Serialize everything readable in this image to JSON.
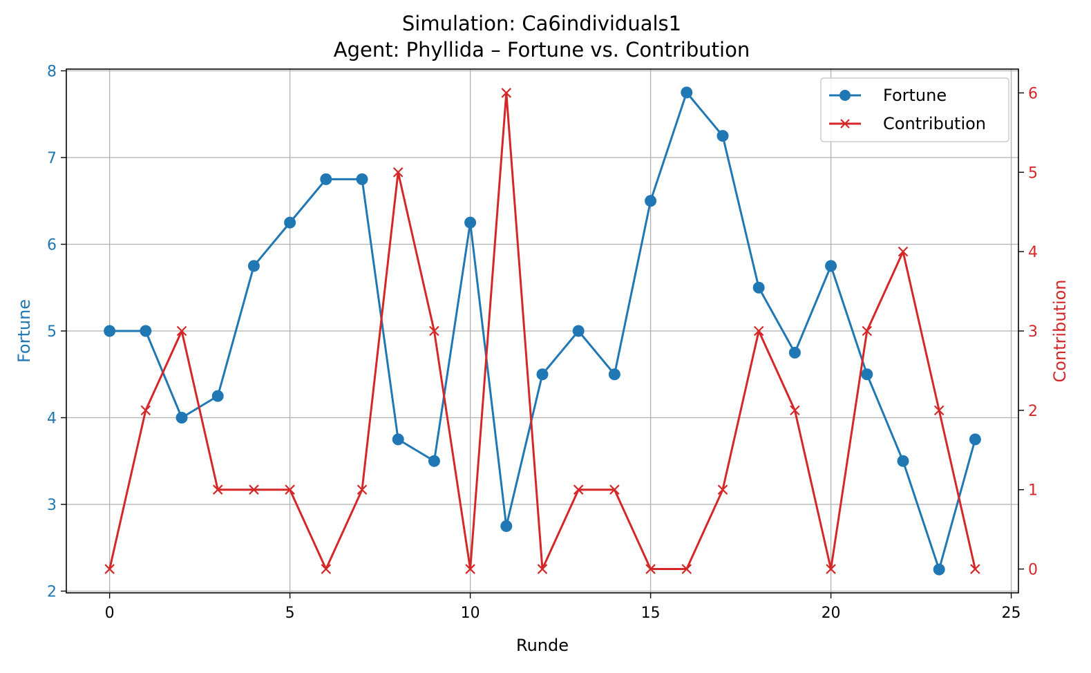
{
  "chart_data": {
    "type": "line",
    "title": "Simulation: Ca6individuals1",
    "subtitle": "Agent: Phyllida – Fortune vs. Contribution",
    "xlabel": "Runde",
    "ylabel_left": "Fortune",
    "ylabel_right": "Contribution",
    "x": [
      0,
      1,
      2,
      3,
      4,
      5,
      6,
      7,
      8,
      9,
      10,
      11,
      12,
      13,
      14,
      15,
      16,
      17,
      18,
      19,
      20,
      21,
      22,
      23,
      24
    ],
    "xlim": [
      -1.2,
      25.2
    ],
    "ylim_left": [
      1.98,
      8.02
    ],
    "ylim_right": [
      -0.3,
      6.3
    ],
    "x_ticks": [
      0,
      5,
      10,
      15,
      20,
      25
    ],
    "y_ticks_left": [
      2,
      3,
      4,
      5,
      6,
      7,
      8
    ],
    "y_ticks_right": [
      0,
      1,
      2,
      3,
      4,
      5,
      6
    ],
    "grid": true,
    "legend_position": "top-right",
    "series": [
      {
        "name": "Fortune",
        "axis": "left",
        "color": "#1f77b4",
        "marker": "circle",
        "values": [
          5,
          5,
          4,
          4.25,
          5.75,
          6.25,
          6.75,
          6.75,
          3.75,
          3.5,
          6.25,
          2.75,
          4.5,
          5,
          4.5,
          6.5,
          7.75,
          7.25,
          5.5,
          4.75,
          5.75,
          4.5,
          3.5,
          2.25,
          3.75
        ]
      },
      {
        "name": "Contribution",
        "axis": "right",
        "color": "#d62728",
        "marker": "x",
        "values": [
          0,
          2,
          3,
          1,
          1,
          1,
          0,
          1,
          5,
          3,
          0,
          6,
          0,
          1,
          1,
          0,
          0,
          1,
          3,
          2,
          0,
          3,
          4,
          2,
          0
        ]
      }
    ]
  }
}
